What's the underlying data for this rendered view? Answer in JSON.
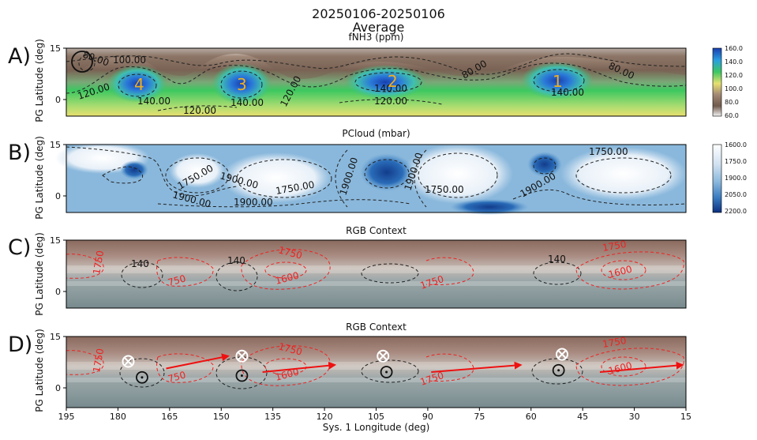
{
  "figure": {
    "title_line1": "20250106-20250106",
    "title_line2": "Average",
    "x_label": "Sys. 1 Longitude (deg)"
  },
  "panels": [
    {
      "letter": "A)",
      "title": "fNH3 (ppm)",
      "ylabel": "PG Latitude (deg)"
    },
    {
      "letter": "B)",
      "title": "PCloud (mbar)",
      "ylabel": "PG Latitude (deg)"
    },
    {
      "letter": "C)",
      "title": "RGB Context",
      "ylabel": "PG Latitude (deg)"
    },
    {
      "letter": "D)",
      "title": "RGB Context",
      "ylabel": "PG Latitude (deg)"
    }
  ],
  "colors": {
    "nh3_high": "#2060c8",
    "nh3_mid": "#3cc860",
    "nh3_low": "#e8e070",
    "nh3_brown": "#8a6e5e",
    "pcloud_light": "#f4f8fc",
    "pcloud_dark": "#1a4a9a",
    "contour_black": "#222222",
    "contour_red": "#ee2222",
    "plume_number": "#f0b020"
  },
  "chart_data": [
    {
      "type": "heatmap",
      "title": "fNH3 (ppm)",
      "ylabel": "PG Latitude (deg)",
      "xlim": [
        195,
        15
      ],
      "ylim": [
        -5,
        15
      ],
      "xticks": [
        195,
        180,
        165,
        150,
        135,
        120,
        105,
        90,
        75,
        60,
        45,
        30,
        15
      ],
      "yticks": [
        "15",
        "0"
      ],
      "colorbar": {
        "ticks": [
          "160.0",
          "140.0",
          "120.0",
          "100.0",
          "80.0",
          "60.0"
        ],
        "range": [
          60,
          160
        ]
      },
      "contour_labels": [
        "80.00",
        "100.00",
        "120.00",
        "140.00",
        "140.00",
        "140.00",
        "140.00",
        "120.00",
        "120.00",
        "120.00",
        "80.00",
        "80.00"
      ],
      "plumes": [
        {
          "label": "4",
          "lon": 171,
          "lat": 6
        },
        {
          "label": "3",
          "lon": 142,
          "lat": 6
        },
        {
          "label": "2",
          "lon": 101,
          "lat": 6
        },
        {
          "label": "1",
          "lon": 52,
          "lat": 6
        }
      ]
    },
    {
      "type": "heatmap",
      "title": "PCloud (mbar)",
      "ylabel": "PG Latitude (deg)",
      "xlim": [
        195,
        15
      ],
      "ylim": [
        -5,
        15
      ],
      "yticks": [
        "15",
        "0"
      ],
      "colorbar": {
        "ticks": [
          "1600.0",
          "1750.0",
          "1900.0",
          "2050.0",
          "2200.0"
        ],
        "range": [
          1600,
          2200
        ],
        "reversed": true
      },
      "contour_labels": [
        "1750.00",
        "1900.00",
        "1900.00",
        "1750.00",
        "1900.00",
        "1900.00",
        "1750.00",
        "1900.00",
        "1900.00",
        "1750.00"
      ]
    },
    {
      "type": "heatmap",
      "title": "RGB Context",
      "ylabel": "PG Latitude (deg)",
      "xlim": [
        195,
        15
      ],
      "ylim": [
        -5,
        15
      ],
      "yticks": [
        "15",
        "0"
      ],
      "black_contour_labels": [
        "140",
        "140",
        "140"
      ],
      "red_contour_labels": [
        "1750",
        "750",
        "1750",
        "1600",
        "1750",
        "1750",
        "1600"
      ]
    },
    {
      "type": "heatmap",
      "title": "RGB Context",
      "ylabel": "PG Latitude (deg)",
      "xlim": [
        195,
        15
      ],
      "ylim": [
        -5,
        15
      ],
      "yticks": [
        "15",
        "0"
      ],
      "red_contour_labels": [
        "1750",
        "750",
        "1750",
        "1600",
        "1750",
        "1750",
        "1600"
      ],
      "plume_markers": [
        {
          "lon": 173,
          "lat": 3.5
        },
        {
          "lon": 144,
          "lat": 4
        },
        {
          "lon": 102,
          "lat": 5
        },
        {
          "lon": 52,
          "lat": 5.5
        }
      ],
      "crossed_markers": [
        {
          "lon": 177,
          "lat": 8
        },
        {
          "lon": 144,
          "lat": 9.5
        },
        {
          "lon": 103,
          "lat": 9.5
        },
        {
          "lon": 51,
          "lat": 10
        }
      ],
      "arrows": [
        {
          "from_lon": 166,
          "from_lat": 6,
          "to_lon": 148,
          "to_lat": 9.5
        },
        {
          "from_lon": 138,
          "from_lat": 5,
          "to_lon": 117,
          "to_lat": 7
        },
        {
          "from_lon": 89,
          "from_lat": 5,
          "to_lon": 63,
          "to_lat": 7
        },
        {
          "from_lon": 40,
          "from_lat": 5,
          "to_lon": 16,
          "to_lat": 7
        }
      ]
    }
  ]
}
